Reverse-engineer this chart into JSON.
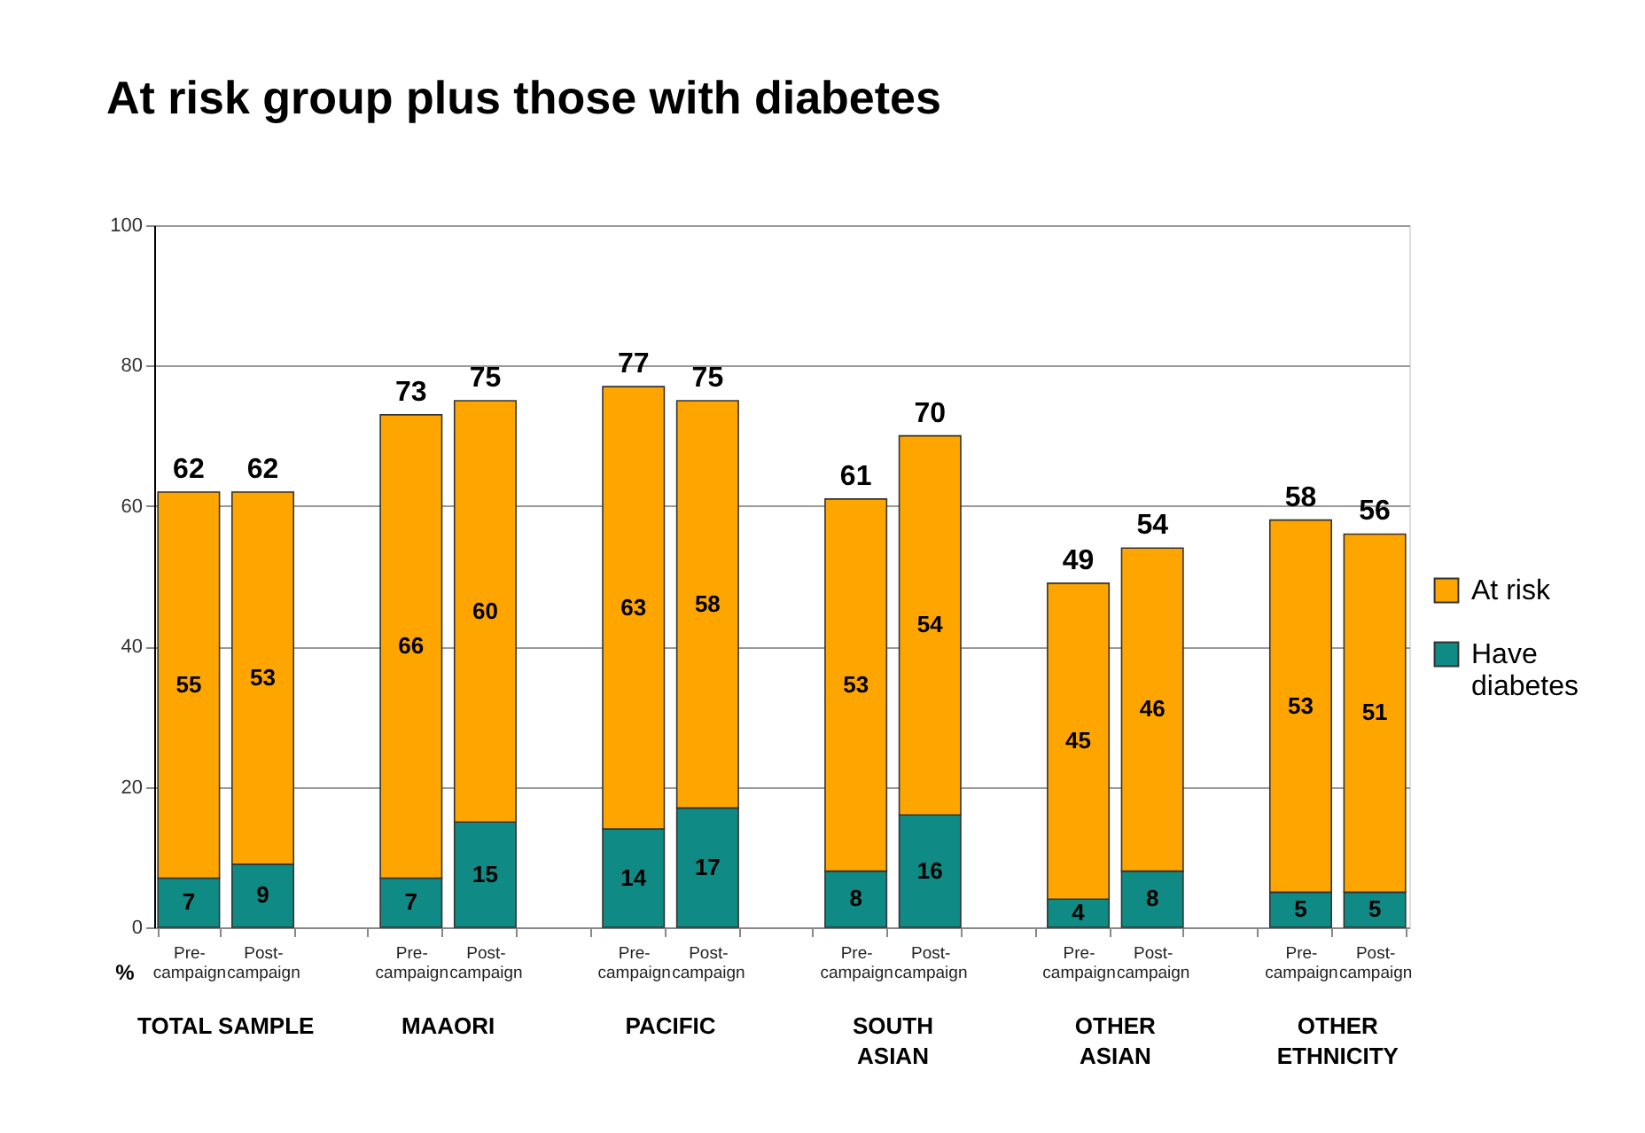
{
  "chart_data": {
    "type": "bar",
    "title": "At risk group plus those with diabetes",
    "ylabel": "%",
    "categories": [
      "Pre-campaign",
      "Post-campaign",
      null,
      "Pre-campaign",
      "Post-campaign",
      null,
      "Pre-campaign",
      "Post-campaign",
      null,
      "Pre-campaign",
      "Post-campaign",
      null,
      "Pre-campaign",
      "Post-campaign",
      null,
      "Pre-campaign",
      "Post-campaign"
    ],
    "series": [
      {
        "name": "Have diabetes",
        "color": "#0f8a84",
        "values": [
          7,
          9,
          null,
          7,
          15,
          null,
          14,
          17,
          null,
          8,
          16,
          null,
          4,
          8,
          null,
          5,
          5
        ]
      },
      {
        "name": "At risk",
        "color": "#ffa500",
        "values": [
          55,
          53,
          null,
          66,
          60,
          null,
          63,
          58,
          null,
          53,
          54,
          null,
          45,
          46,
          null,
          53,
          51
        ]
      }
    ],
    "stacked": true,
    "ylim": [
      0,
      100
    ],
    "yticks": [
      0,
      20,
      40,
      60,
      80,
      100
    ],
    "grid": "y",
    "legend": "right",
    "data_labels": true,
    "totals": [
      "62",
      "62",
      null,
      "73",
      "75",
      null,
      "77",
      "75",
      null,
      "61",
      "70",
      null,
      "49",
      "54",
      null,
      "58",
      "56"
    ],
    "annotations": [
      "TOTAL SAMPLE",
      "MAAORI",
      "PACIFIC",
      "SOUTH\nASIAN",
      "OTHER\nASIAN",
      "OTHER\nETHNICITY"
    ]
  }
}
